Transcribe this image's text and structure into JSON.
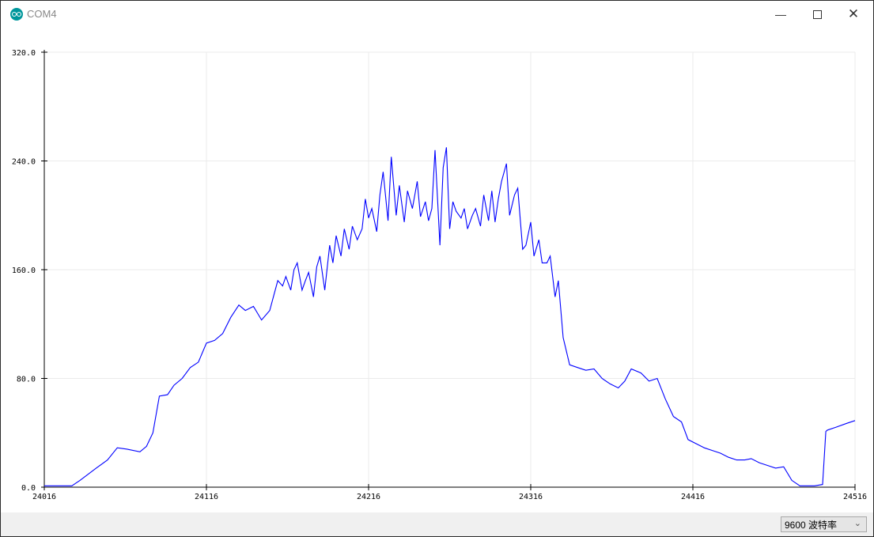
{
  "window": {
    "title": "COM4",
    "icon": "arduino-icon",
    "minimize_icon": "minimize-icon",
    "maximize_icon": "maximize-icon",
    "close_icon": "close-icon"
  },
  "baud_select": {
    "value": "9600 波特率"
  },
  "chart_data": {
    "type": "line",
    "xlim": [
      24016,
      24516
    ],
    "ylim": [
      0,
      320
    ],
    "x_ticks": [
      "24016",
      "24116",
      "24216",
      "24316",
      "24416",
      "24516"
    ],
    "y_ticks": [
      "0.0",
      "80.0",
      "160.0",
      "240.0",
      "320.0"
    ],
    "grid": true,
    "line_color": "#0000ff",
    "points": [
      [
        24016,
        1
      ],
      [
        24033,
        1
      ],
      [
        24038,
        5
      ],
      [
        24048,
        14
      ],
      [
        24055,
        20
      ],
      [
        24061,
        29
      ],
      [
        24067,
        28
      ],
      [
        24075,
        26
      ],
      [
        24079,
        30
      ],
      [
        24083,
        40
      ],
      [
        24087,
        67
      ],
      [
        24092,
        68
      ],
      [
        24096,
        75
      ],
      [
        24101,
        80
      ],
      [
        24106,
        88
      ],
      [
        24111,
        92
      ],
      [
        24116,
        106
      ],
      [
        24121,
        108
      ],
      [
        24126,
        113
      ],
      [
        24131,
        125
      ],
      [
        24136,
        134
      ],
      [
        24140,
        130
      ],
      [
        24145,
        133
      ],
      [
        24150,
        123
      ],
      [
        24155,
        130
      ],
      [
        24160,
        152
      ],
      [
        24163,
        148
      ],
      [
        24165,
        155
      ],
      [
        24168,
        145
      ],
      [
        24170,
        160
      ],
      [
        24172,
        165
      ],
      [
        24175,
        145
      ],
      [
        24177,
        152
      ],
      [
        24179,
        158
      ],
      [
        24182,
        140
      ],
      [
        24184,
        162
      ],
      [
        24186,
        170
      ],
      [
        24189,
        145
      ],
      [
        24192,
        178
      ],
      [
        24194,
        165
      ],
      [
        24196,
        185
      ],
      [
        24199,
        170
      ],
      [
        24201,
        190
      ],
      [
        24204,
        175
      ],
      [
        24206,
        192
      ],
      [
        24209,
        182
      ],
      [
        24212,
        190
      ],
      [
        24214,
        212
      ],
      [
        24216,
        198
      ],
      [
        24218,
        205
      ],
      [
        24221,
        188
      ],
      [
        24223,
        215
      ],
      [
        24225,
        232
      ],
      [
        24228,
        196
      ],
      [
        24230,
        243
      ],
      [
        24233,
        200
      ],
      [
        24235,
        222
      ],
      [
        24238,
        195
      ],
      [
        24240,
        218
      ],
      [
        24243,
        205
      ],
      [
        24246,
        225
      ],
      [
        24248,
        199
      ],
      [
        24251,
        210
      ],
      [
        24253,
        196
      ],
      [
        24255,
        205
      ],
      [
        24257,
        248
      ],
      [
        24260,
        178
      ],
      [
        24262,
        235
      ],
      [
        24264,
        250
      ],
      [
        24266,
        190
      ],
      [
        24268,
        210
      ],
      [
        24270,
        203
      ],
      [
        24273,
        198
      ],
      [
        24275,
        205
      ],
      [
        24277,
        190
      ],
      [
        24280,
        200
      ],
      [
        24282,
        205
      ],
      [
        24285,
        192
      ],
      [
        24287,
        215
      ],
      [
        24290,
        196
      ],
      [
        24292,
        218
      ],
      [
        24294,
        195
      ],
      [
        24296,
        212
      ],
      [
        24298,
        225
      ],
      [
        24301,
        238
      ],
      [
        24303,
        200
      ],
      [
        24306,
        215
      ],
      [
        24308,
        220
      ],
      [
        24311,
        175
      ],
      [
        24313,
        178
      ],
      [
        24316,
        195
      ],
      [
        24318,
        170
      ],
      [
        24321,
        182
      ],
      [
        24323,
        165
      ],
      [
        24326,
        165
      ],
      [
        24328,
        170
      ],
      [
        24331,
        140
      ],
      [
        24333,
        152
      ],
      [
        24336,
        110
      ],
      [
        24340,
        90
      ],
      [
        24345,
        88
      ],
      [
        24350,
        86
      ],
      [
        24355,
        87
      ],
      [
        24360,
        80
      ],
      [
        24365,
        76
      ],
      [
        24370,
        73
      ],
      [
        24374,
        78
      ],
      [
        24378,
        87
      ],
      [
        24384,
        84
      ],
      [
        24389,
        78
      ],
      [
        24394,
        80
      ],
      [
        24399,
        65
      ],
      [
        24404,
        52
      ],
      [
        24409,
        48
      ],
      [
        24413,
        35
      ],
      [
        24418,
        32
      ],
      [
        24423,
        29
      ],
      [
        24428,
        27
      ],
      [
        24433,
        25
      ],
      [
        24438,
        22
      ],
      [
        24443,
        20
      ],
      [
        24448,
        20
      ],
      [
        24452,
        21
      ],
      [
        24457,
        18
      ],
      [
        24462,
        16
      ],
      [
        24467,
        14
      ],
      [
        24472,
        15
      ],
      [
        24477,
        5
      ],
      [
        24482,
        1
      ],
      [
        24491,
        1
      ],
      [
        24496,
        2
      ],
      [
        24498,
        41
      ],
      [
        24499,
        42
      ],
      [
        24504,
        44
      ],
      [
        24511,
        47
      ],
      [
        24516,
        49
      ]
    ]
  }
}
